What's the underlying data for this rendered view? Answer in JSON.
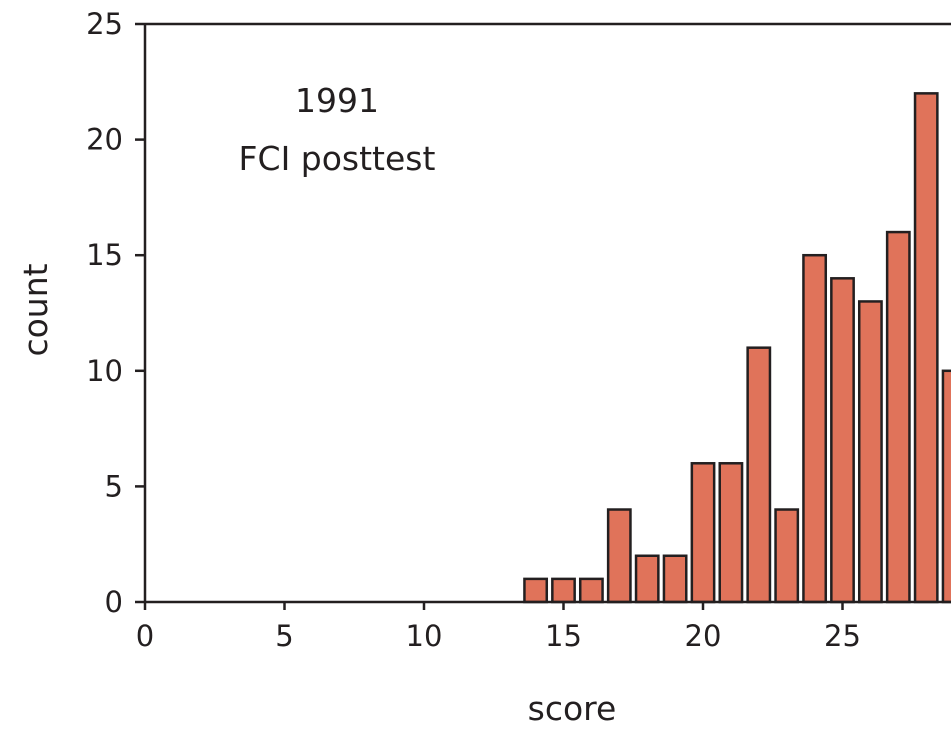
{
  "chart_data": {
    "type": "bar",
    "annotation_lines": [
      "1991",
      "FCI posttest"
    ],
    "xlabel": "score",
    "ylabel": "count",
    "xlim": [
      0,
      28.6
    ],
    "ylim": [
      0,
      25
    ],
    "x_ticks": [
      "0",
      "5",
      "10",
      "15",
      "20",
      "25"
    ],
    "y_ticks": [
      "0",
      "5",
      "10",
      "15",
      "20",
      "25"
    ],
    "grid": false,
    "x": [
      14,
      15,
      16,
      17,
      18,
      19,
      20,
      21,
      22,
      23,
      24,
      25,
      26,
      27,
      28,
      29
    ],
    "values": [
      1,
      1,
      1,
      4,
      2,
      2,
      6,
      6,
      11,
      4,
      15,
      14,
      13,
      16,
      22,
      10
    ],
    "colors": {
      "bar_fill": "#e0735a",
      "bar_stroke": "#231f20",
      "axis": "#231f20"
    }
  }
}
